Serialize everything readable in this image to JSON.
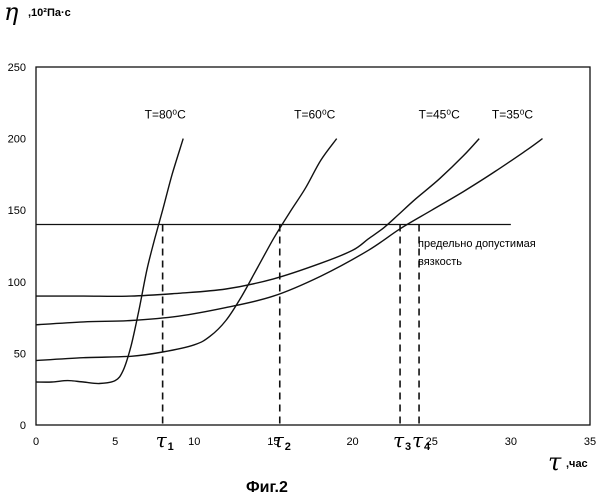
{
  "chart_data": {
    "type": "line",
    "title": "",
    "figure_caption": "Фиг.2",
    "ylabel_symbol": "η",
    "ylabel_unit": ",10²Па·с",
    "xlabel_symbol": "τ",
    "xlabel_unit": ",час",
    "xlim": [
      0,
      35
    ],
    "ylim": [
      0,
      250
    ],
    "x_ticks": [
      "0",
      "5",
      "10",
      "15",
      "20",
      "25",
      "30",
      "35"
    ],
    "y_ticks": [
      "0",
      "50",
      "100",
      "150",
      "200",
      "250"
    ],
    "grid": false,
    "series": [
      {
        "name": "T=80⁰C",
        "x": [
          0,
          1,
          2,
          3,
          4,
          5,
          5.5,
          6,
          6.5,
          7,
          7.5,
          8,
          8.6,
          9.3
        ],
        "y": [
          30,
          30,
          31,
          30,
          29,
          31,
          38,
          55,
          80,
          108,
          130,
          150,
          175,
          200
        ]
      },
      {
        "name": "T=60⁰C",
        "x": [
          0,
          3,
          6,
          8,
          10,
          11,
          12,
          13,
          14,
          15,
          16,
          17,
          18,
          19
        ],
        "y": [
          45,
          47,
          48,
          51,
          56,
          62,
          73,
          90,
          110,
          130,
          148,
          165,
          185,
          200
        ]
      },
      {
        "name": "T=45⁰C",
        "x": [
          0,
          3,
          6,
          9,
          12,
          15,
          18,
          20,
          21,
          22,
          23,
          24,
          25.5,
          27,
          28
        ],
        "y": [
          90,
          90,
          90,
          92,
          95,
          102,
          113,
          122,
          130,
          138,
          148,
          158,
          172,
          188,
          200
        ]
      },
      {
        "name": "T=35⁰C",
        "x": [
          0,
          3,
          6,
          9,
          12,
          15,
          18,
          21,
          23,
          25,
          27,
          29,
          31,
          32
        ],
        "y": [
          70,
          72,
          73,
          76,
          82,
          90,
          104,
          122,
          137,
          150,
          163,
          177,
          192,
          200
        ]
      }
    ],
    "threshold": {
      "y": 140,
      "x_end": 30,
      "label_line1": "предельно допустимая",
      "label_line2": "вязкость"
    },
    "markers": [
      {
        "label": "τ",
        "sub": "1",
        "x": 8.0
      },
      {
        "label": "τ",
        "sub": "2",
        "x": 15.4
      },
      {
        "label": "τ",
        "sub": "3",
        "x": 23.0
      },
      {
        "label": "τ",
        "sub": "4",
        "x": 24.2
      }
    ]
  }
}
